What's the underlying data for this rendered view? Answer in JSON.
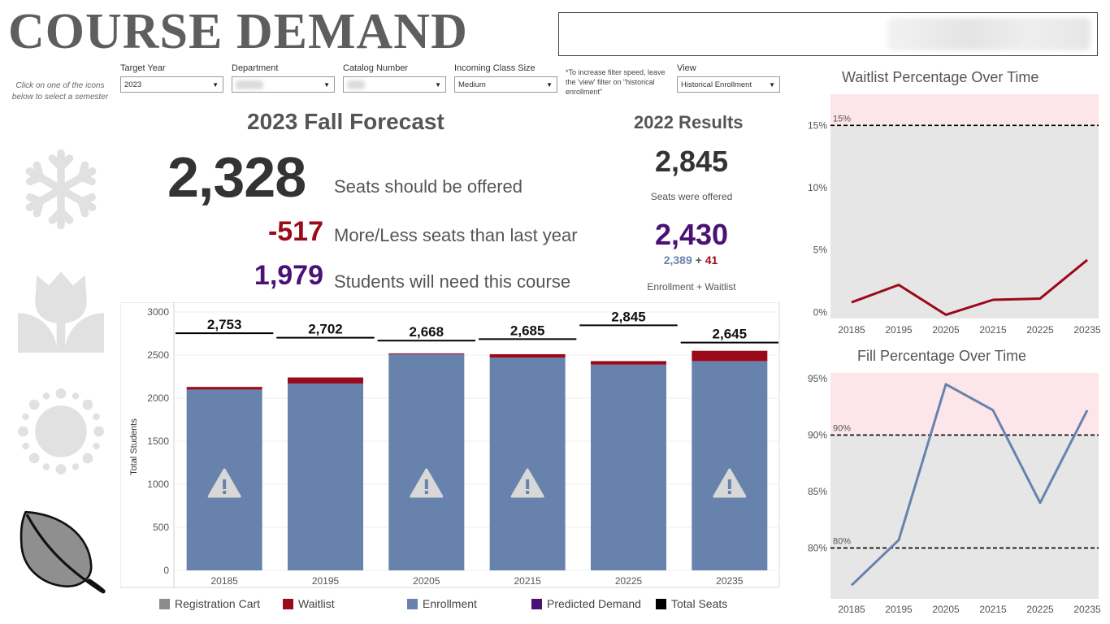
{
  "header": {
    "title": "COURSE DEMAND"
  },
  "hint_text": "Click on one of the icons below to select a semester",
  "filters": [
    {
      "label": "Target Year",
      "value": "2023"
    },
    {
      "label": "Department",
      "value": ""
    },
    {
      "label": "Catalog Number",
      "value": ""
    },
    {
      "label": "Incoming Class Size",
      "value": "Medium"
    },
    {
      "label": "View",
      "value": "Historical Enrollment"
    }
  ],
  "speed_note": "*To increase filter speed, leave the 'view' filter on \"historical enrollment\"",
  "semesters": [
    "winter-snowflake-icon",
    "spring-tulip-icon",
    "summer-sun-icon",
    "fall-leaf-icon"
  ],
  "forecast": {
    "title": "2023 Fall Forecast",
    "seats_value": "2,328",
    "seats_label": "Seats should be offered",
    "diff_value": "-517",
    "diff_label": "More/Less seats than last year",
    "students_value": "1,979",
    "students_label": "Students will need this course"
  },
  "results": {
    "title": "2022 Results",
    "seats_value": "2,845",
    "seats_label": "Seats were offered",
    "total_value": "2,430",
    "enrollment_value": "2,389",
    "plus": "+",
    "waitlist_value": "41",
    "total_label": "Enrollment + Waitlist"
  },
  "colors": {
    "enrollment": "#6783ad",
    "waitlist": "#9b0a1a",
    "predicted": "#4b1276",
    "registration": "#8c8c8c",
    "total_seats": "#000000",
    "threshold_band": "#fde6ea",
    "plot_bg": "#e6e6e6",
    "icon_gray": "#e1e1e1"
  },
  "legend": [
    {
      "label": "Registration Cart",
      "color": "#8c8c8c"
    },
    {
      "label": "Waitlist",
      "color": "#9b0a1a"
    },
    {
      "label": "Enrollment",
      "color": "#6783ad"
    },
    {
      "label": "Predicted Demand",
      "color": "#4b1276"
    },
    {
      "label": "Total Seats",
      "color": "#000000"
    }
  ],
  "chart_data": [
    {
      "type": "bar",
      "ylabel": "Total Students",
      "ylim": [
        0,
        3000
      ],
      "yticks": [
        0,
        500,
        1000,
        1500,
        2000,
        2500,
        3000
      ],
      "categories": [
        "20185",
        "20195",
        "20205",
        "20215",
        "20225",
        "20235"
      ],
      "series": [
        {
          "name": "Enrollment",
          "values": [
            2100,
            2170,
            2510,
            2470,
            2389,
            2430
          ]
        },
        {
          "name": "Waitlist",
          "values": [
            30,
            70,
            10,
            40,
            41,
            120
          ]
        },
        {
          "name": "Total Seats",
          "values": [
            2753,
            2702,
            2668,
            2685,
            2845,
            2645
          ]
        }
      ],
      "total_seat_labels": [
        "2,753",
        "2,702",
        "2,668",
        "2,685",
        "2,845",
        "2,645"
      ],
      "warning_flags": [
        true,
        false,
        true,
        true,
        false,
        true
      ],
      "legend_position": "bottom"
    },
    {
      "type": "line",
      "title": "Waitlist Percentage Over Time",
      "categories": [
        "20185",
        "20195",
        "20205",
        "20215",
        "20225",
        "20235"
      ],
      "series": [
        {
          "values": [
            0.8,
            2.2,
            -0.2,
            1.0,
            1.1,
            4.2
          ]
        }
      ],
      "ylim": [
        -0.5,
        17.5
      ],
      "yticks": [
        "0%",
        "5%",
        "10%",
        "15%"
      ],
      "ytick_values": [
        0,
        5,
        10,
        15
      ],
      "threshold": {
        "value": 15,
        "label": "15%"
      }
    },
    {
      "type": "line",
      "title": "Fill Percentage Over Time",
      "categories": [
        "20185",
        "20195",
        "20205",
        "20215",
        "20225",
        "20235"
      ],
      "series": [
        {
          "values": [
            76.7,
            80.7,
            94.5,
            92.2,
            84.0,
            92.2
          ]
        }
      ],
      "ylim": [
        75.5,
        95.5
      ],
      "yticks": [
        "80%",
        "85%",
        "90%",
        "95%"
      ],
      "ytick_values": [
        80,
        85,
        90,
        95
      ],
      "thresholds": [
        {
          "value": 90,
          "label": "90%"
        },
        {
          "value": 80,
          "label": "80%"
        }
      ]
    }
  ]
}
